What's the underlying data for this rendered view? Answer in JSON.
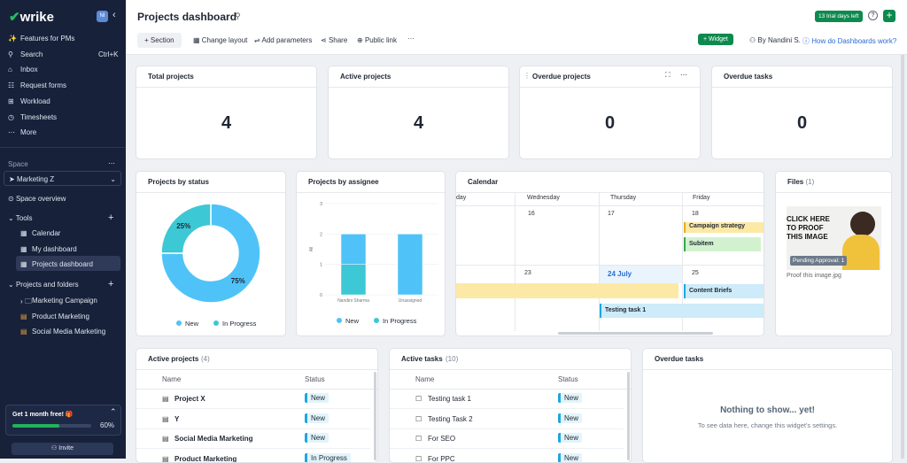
{
  "sidebar": {
    "brand": "wrike",
    "avatar": "NI",
    "nav": [
      {
        "label": "Features for PMs"
      },
      {
        "label": "Search",
        "shortcut": "Ctrl+K"
      },
      {
        "label": "Inbox"
      },
      {
        "label": "Request forms"
      },
      {
        "label": "Workload"
      },
      {
        "label": "Timesheets"
      },
      {
        "label": "More"
      }
    ],
    "space_heading": "Space",
    "space_name": "Marketing Z",
    "space_overview": "Space overview",
    "tools_heading": "Tools",
    "tools": [
      "Calendar",
      "My dashboard",
      "Projects dashboard"
    ],
    "projects_heading": "Projects and folders",
    "projects": [
      "Marketing Campaign",
      "Product Marketing",
      "Social Media Marketing"
    ],
    "promo": {
      "title": "Get 1 month free! 🎁",
      "progress": {
        "value": 60,
        "label": "60%"
      }
    },
    "invite": "Invite"
  },
  "header": {
    "title": "Projects dashboard",
    "trial": "13 trial days left",
    "toolbar": [
      "Section",
      "Change layout",
      "Add parameters",
      "Share",
      "Public link"
    ],
    "widget_button": "Widget",
    "owner": "By Nandini S.",
    "help": "How do Dashboards work?"
  },
  "stats": [
    {
      "title": "Total projects",
      "value": 4
    },
    {
      "title": "Active projects",
      "value": 4
    },
    {
      "title": "Overdue projects",
      "value": 0
    },
    {
      "title": "Overdue tasks",
      "value": 0
    }
  ],
  "chart_data": [
    {
      "type": "pie",
      "title": "Projects by status",
      "categories": [
        "New",
        "In Progress"
      ],
      "values": [
        75,
        25
      ],
      "value_labels": [
        "75%",
        "25%"
      ],
      "colors": [
        "#4fc3f7",
        "#3cc8d4"
      ]
    },
    {
      "type": "bar",
      "stacked": true,
      "title": "Projects by assignee",
      "y_label": "All",
      "categories": [
        "Nandini Sharma",
        "Unassigned"
      ],
      "series": [
        {
          "name": "New",
          "color": "#4fc3f7",
          "values": [
            1,
            2
          ]
        },
        {
          "name": "In Progress",
          "color": "#3cc8d4",
          "values": [
            1,
            0
          ]
        }
      ],
      "ylim": [
        0,
        3
      ],
      "yticks": [
        0,
        1,
        2,
        3
      ]
    }
  ],
  "calendar": {
    "title": "Calendar",
    "days": [
      "day",
      "Wednesday",
      "Thursday",
      "Friday"
    ],
    "dates": [
      "16",
      "17",
      "18",
      "23",
      "24 July",
      "25"
    ],
    "events": [
      "Campaign strategy",
      "Subitem",
      "Content Briefs",
      "Testing task 1"
    ]
  },
  "files": {
    "title": "Files",
    "count": "(1)",
    "image_text": "CLICK HERE TO PROOF THIS IMAGE",
    "badge": "Pending Approval: 1",
    "filename": "Proof this image.jpg"
  },
  "active_projects": {
    "title": "Active projects",
    "count": "(4)",
    "columns": [
      "Name",
      "Status"
    ],
    "rows": [
      [
        "Project X",
        "New"
      ],
      [
        "Y",
        "New"
      ],
      [
        "Social Media Marketing",
        "New"
      ],
      [
        "Product Marketing",
        "In Progress"
      ]
    ]
  },
  "active_tasks": {
    "title": "Active tasks",
    "count": "(10)",
    "columns": [
      "Name",
      "Status"
    ],
    "rows": [
      [
        "Testing task 1",
        "New"
      ],
      [
        "Testing Task 2",
        "New"
      ],
      [
        "For SEO",
        "New"
      ],
      [
        "For PPC",
        "New"
      ]
    ]
  },
  "overdue_tasks": {
    "title": "Overdue tasks",
    "empty_title": "Nothing to show... yet!",
    "empty_text": "To see data here, change this widget's settings."
  }
}
